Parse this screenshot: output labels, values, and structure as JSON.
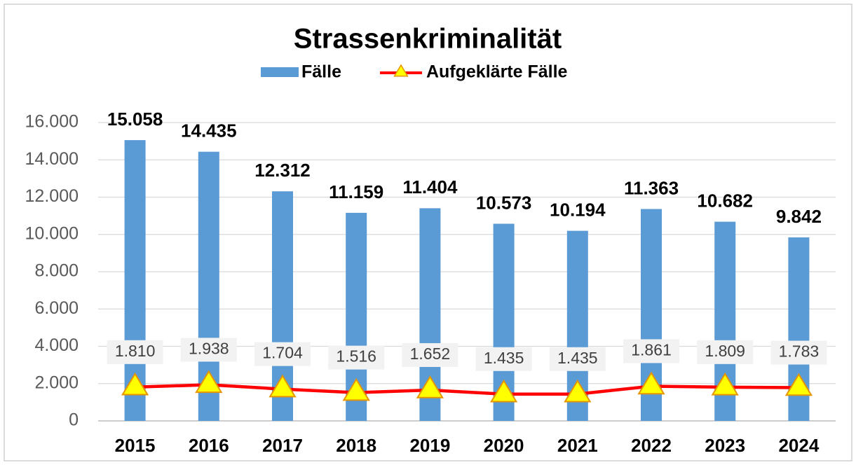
{
  "chart_data": {
    "type": "combo",
    "title": "Strassenkriminalität",
    "categories": [
      "2015",
      "2016",
      "2017",
      "2018",
      "2019",
      "2020",
      "2021",
      "2022",
      "2023",
      "2024"
    ],
    "series": [
      {
        "name": "Fälle",
        "type": "bar",
        "color": "#5b9bd5",
        "values": [
          15058,
          14435,
          12312,
          11159,
          11404,
          10573,
          10194,
          11363,
          10682,
          9842
        ],
        "value_labels": [
          "15.058",
          "14.435",
          "12.312",
          "11.159",
          "11.404",
          "10.573",
          "10.194",
          "11.363",
          "10.682",
          "9.842"
        ]
      },
      {
        "name": "Aufgeklärte Fälle",
        "type": "line",
        "color": "#ff0000",
        "marker_color": "#ffff00",
        "values": [
          1810,
          1938,
          1704,
          1516,
          1652,
          1435,
          1435,
          1861,
          1809,
          1783
        ],
        "value_labels": [
          "1.810",
          "1.938",
          "1.704",
          "1.516",
          "1.652",
          "1.435",
          "1.435",
          "1.861",
          "1.809",
          "1.783"
        ]
      }
    ],
    "ylim": [
      0,
      16000
    ],
    "yticks": [
      0,
      {
        "value": 2000,
        "label": "2.000"
      },
      {
        "value": 4000,
        "label": "4.000"
      },
      {
        "value": 6000,
        "label": "6.000"
      },
      {
        "value": 8000,
        "label": "8.000"
      },
      {
        "value": 10000,
        "label": "10.000"
      },
      {
        "value": 12000,
        "label": "12.000"
      },
      {
        "value": 14000,
        "label": "14.000"
      },
      {
        "value": 16000,
        "label": "16.000"
      }
    ],
    "grid": true,
    "legend": "top"
  }
}
